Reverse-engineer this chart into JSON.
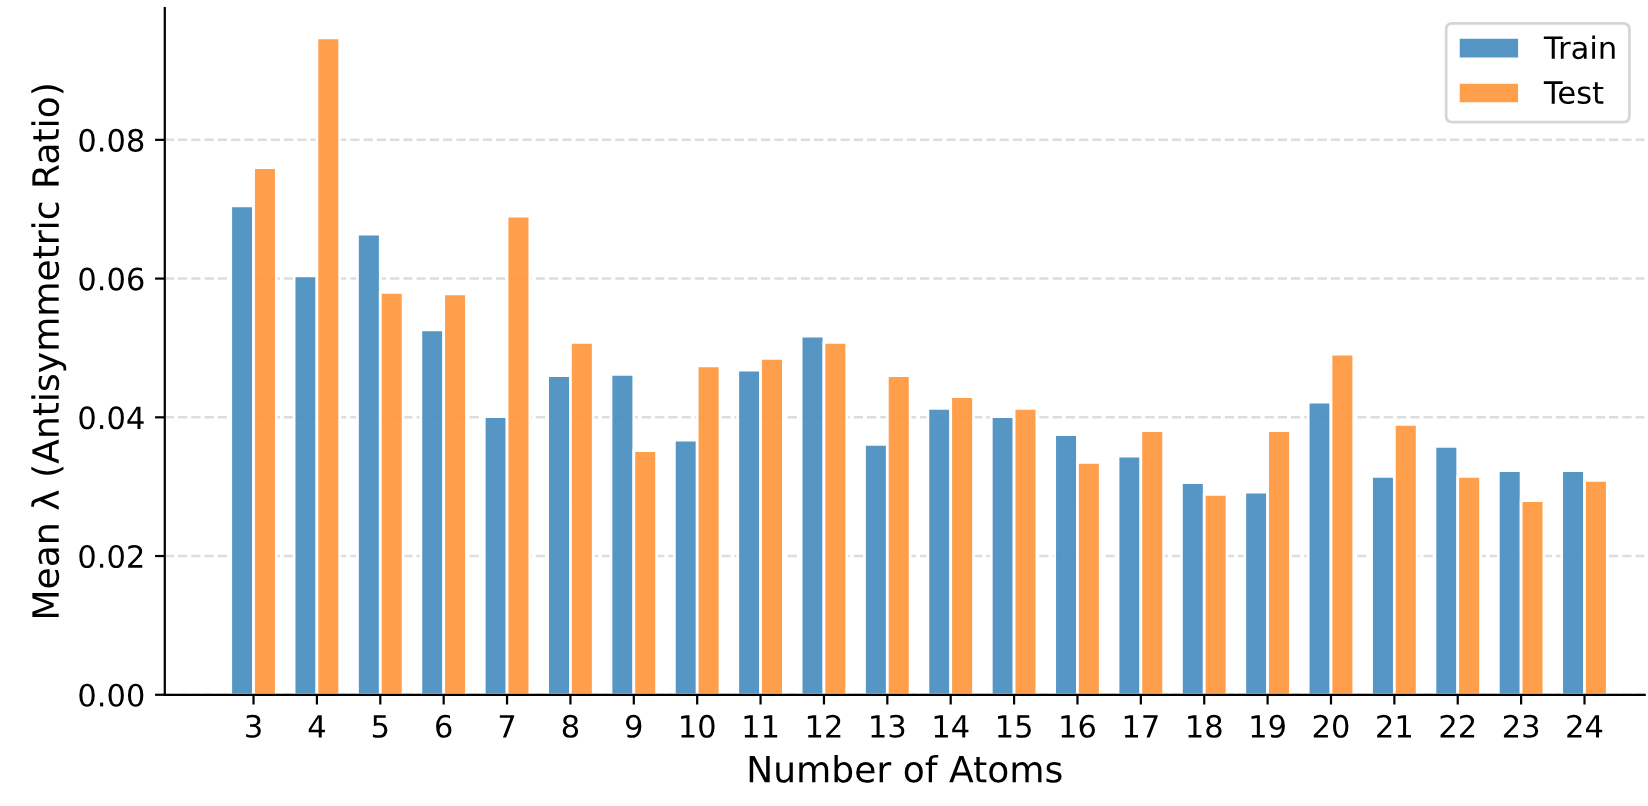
{
  "chart_data": {
    "type": "bar",
    "xlabel": "Number of Atoms",
    "ylabel": "Mean λ (Antisymmetric Ratio)",
    "categories": [
      "3",
      "4",
      "5",
      "6",
      "7",
      "8",
      "9",
      "10",
      "11",
      "12",
      "13",
      "14",
      "15",
      "16",
      "17",
      "18",
      "19",
      "20",
      "21",
      "22",
      "23",
      "24"
    ],
    "series": [
      {
        "name": "Train",
        "color": "#4c91c2",
        "values": [
          0.0705,
          0.0604,
          0.0664,
          0.0526,
          0.0401,
          0.046,
          0.0462,
          0.0367,
          0.0468,
          0.0517,
          0.0361,
          0.0413,
          0.0401,
          0.0375,
          0.0344,
          0.0306,
          0.0292,
          0.0422,
          0.0315,
          0.0358,
          0.0323,
          0.0323
        ]
      },
      {
        "name": "Test",
        "color": "#ff9a42",
        "values": [
          0.076,
          0.0947,
          0.058,
          0.0578,
          0.069,
          0.0508,
          0.0352,
          0.0474,
          0.0485,
          0.0508,
          0.046,
          0.043,
          0.0413,
          0.0335,
          0.0381,
          0.0289,
          0.0381,
          0.0491,
          0.039,
          0.0315,
          0.028,
          0.0309
        ]
      }
    ],
    "ylim": [
      0,
      0.099
    ],
    "yticks": [
      {
        "value": 0,
        "label": "0.00"
      },
      {
        "value": 0.02,
        "label": "0.02"
      },
      {
        "value": 0.04,
        "label": "0.04"
      },
      {
        "value": 0.06,
        "label": "0.06"
      },
      {
        "value": 0.08,
        "label": "0.08"
      }
    ],
    "grid": "y",
    "legend": "top right"
  }
}
